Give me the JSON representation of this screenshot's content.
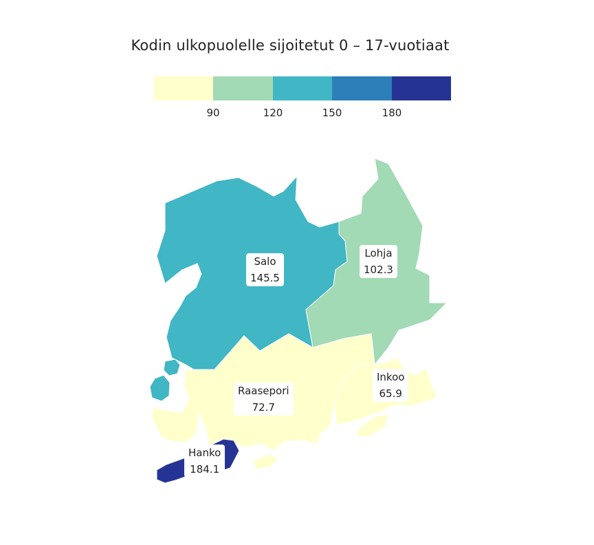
{
  "title": "Kodin ulkopuolelle sijoitetut 0 – 17-vuotiaat",
  "legend": {
    "colors": [
      "#ffffcc",
      "#a1dab4",
      "#41b6c4",
      "#2c7fb8",
      "#253494"
    ],
    "ticks": [
      "90",
      "120",
      "150",
      "180"
    ]
  },
  "regions": [
    {
      "name": "Salo",
      "value": "145.5",
      "color": "#41b6c4"
    },
    {
      "name": "Lohja",
      "value": "102.3",
      "color": "#a1dab4"
    },
    {
      "name": "Raasepori",
      "value": "72.7",
      "color": "#ffffcc"
    },
    {
      "name": "Inkoo",
      "value": "65.9",
      "color": "#ffffcc"
    },
    {
      "name": "Hanko",
      "value": "184.1",
      "color": "#253494"
    }
  ]
}
